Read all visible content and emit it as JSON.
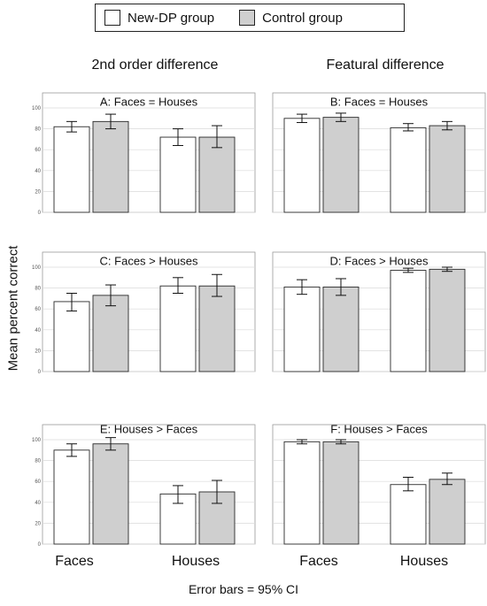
{
  "legend": {
    "new_dp_label": "New-DP group",
    "control_label": "Control group",
    "new_dp_color": "#ffffff",
    "control_color": "#cfcfcf"
  },
  "column_titles": [
    "2nd order difference",
    "Featural difference"
  ],
  "ylabel": "Mean percent correct",
  "footnote": "Error bars = 95% CI",
  "categories": [
    "Faces",
    "Houses"
  ],
  "chart_data": [
    {
      "type": "bar",
      "title": "A: Faces = Houses",
      "categories": [
        "Faces",
        "Houses"
      ],
      "ylim": [
        0,
        100
      ],
      "yticks": [
        "0",
        "20",
        "40",
        "60",
        "80",
        "100"
      ],
      "series": [
        {
          "name": "New-DP group",
          "values": [
            82,
            72
          ],
          "ci_low": [
            77,
            64
          ],
          "ci_high": [
            87,
            80
          ]
        },
        {
          "name": "Control group",
          "values": [
            87,
            72
          ],
          "ci_low": [
            80,
            62
          ],
          "ci_high": [
            94,
            83
          ]
        }
      ]
    },
    {
      "type": "bar",
      "title": "B: Faces = Houses",
      "categories": [
        "Faces",
        "Houses"
      ],
      "ylim": [
        0,
        100
      ],
      "yticks": [
        "0",
        "20",
        "40",
        "60",
        "80",
        "100"
      ],
      "series": [
        {
          "name": "New-DP group",
          "values": [
            90,
            81
          ],
          "ci_low": [
            86,
            78
          ],
          "ci_high": [
            94,
            85
          ]
        },
        {
          "name": "Control group",
          "values": [
            91,
            83
          ],
          "ci_low": [
            87,
            79
          ],
          "ci_high": [
            95,
            87
          ]
        }
      ]
    },
    {
      "type": "bar",
      "title": "C: Faces > Houses",
      "categories": [
        "Faces",
        "Houses"
      ],
      "ylim": [
        0,
        100
      ],
      "yticks": [
        "0",
        "20",
        "40",
        "60",
        "80",
        "100"
      ],
      "series": [
        {
          "name": "New-DP group",
          "values": [
            67,
            82
          ],
          "ci_low": [
            58,
            75
          ],
          "ci_high": [
            75,
            90
          ]
        },
        {
          "name": "Control group",
          "values": [
            73,
            82
          ],
          "ci_low": [
            63,
            72
          ],
          "ci_high": [
            83,
            93
          ]
        }
      ]
    },
    {
      "type": "bar",
      "title": "D: Faces > Houses",
      "categories": [
        "Faces",
        "Houses"
      ],
      "ylim": [
        0,
        100
      ],
      "yticks": [
        "0",
        "20",
        "40",
        "60",
        "80",
        "100"
      ],
      "series": [
        {
          "name": "New-DP group",
          "values": [
            81,
            97
          ],
          "ci_low": [
            74,
            95
          ],
          "ci_high": [
            88,
            99
          ]
        },
        {
          "name": "Control group",
          "values": [
            81,
            98
          ],
          "ci_low": [
            73,
            96
          ],
          "ci_high": [
            89,
            100
          ]
        }
      ]
    },
    {
      "type": "bar",
      "title": "E: Houses > Faces",
      "categories": [
        "Faces",
        "Houses"
      ],
      "ylim": [
        0,
        100
      ],
      "yticks": [
        "0",
        "20",
        "40",
        "60",
        "80",
        "100"
      ],
      "series": [
        {
          "name": "New-DP group",
          "values": [
            90,
            48
          ],
          "ci_low": [
            84,
            39
          ],
          "ci_high": [
            96,
            56
          ]
        },
        {
          "name": "Control group",
          "values": [
            96,
            50
          ],
          "ci_low": [
            90,
            39
          ],
          "ci_high": [
            102,
            61
          ]
        }
      ]
    },
    {
      "type": "bar",
      "title": "F: Houses > Faces",
      "categories": [
        "Faces",
        "Houses"
      ],
      "ylim": [
        0,
        100
      ],
      "yticks": [
        "0",
        "20",
        "40",
        "60",
        "80",
        "100"
      ],
      "series": [
        {
          "name": "New-DP group",
          "values": [
            98,
            57
          ],
          "ci_low": [
            96,
            51
          ],
          "ci_high": [
            100,
            64
          ]
        },
        {
          "name": "Control group",
          "values": [
            98,
            62
          ],
          "ci_low": [
            96,
            57
          ],
          "ci_high": [
            100,
            68
          ]
        }
      ]
    }
  ]
}
